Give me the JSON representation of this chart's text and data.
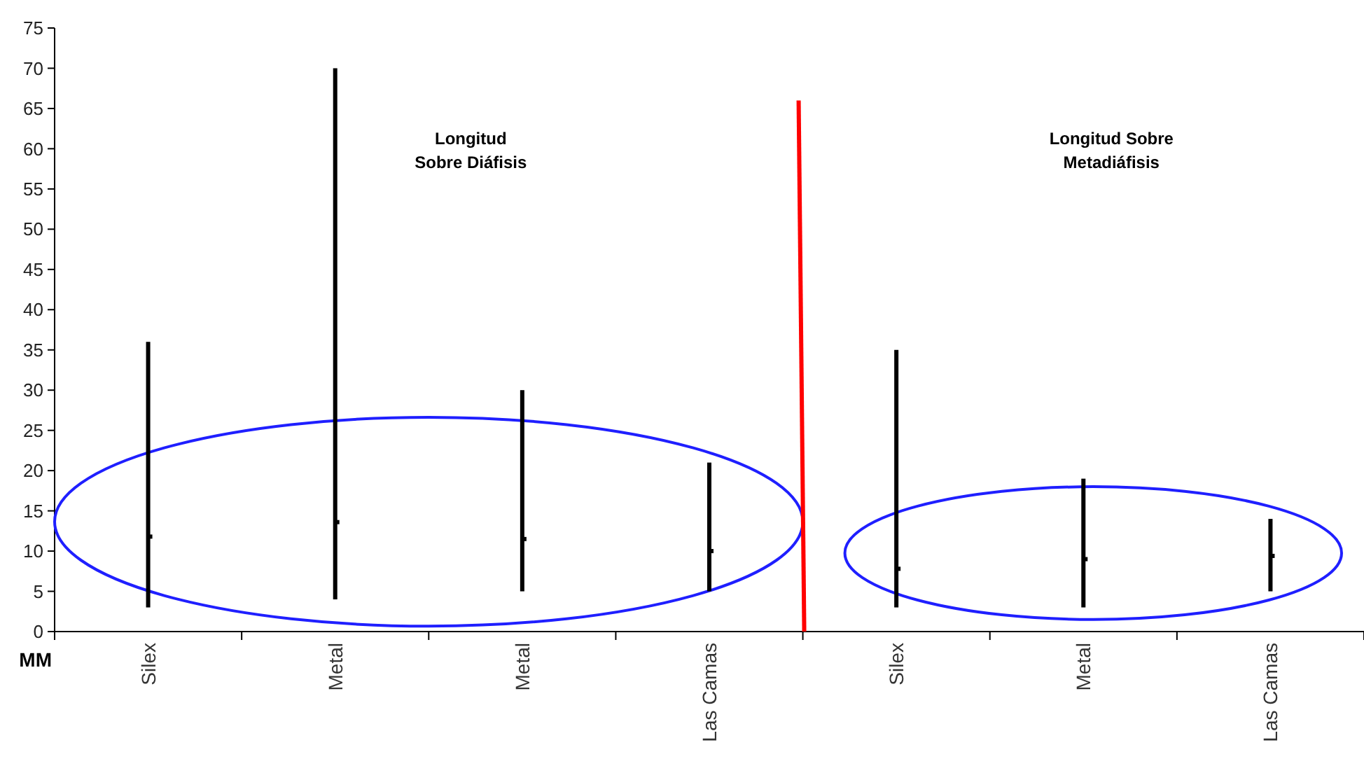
{
  "chart_data": {
    "type": "bar",
    "ylabel": "MM",
    "categories": [
      "Silex",
      "Metal",
      "Metal",
      "Las Camas",
      "Silex",
      "Metal",
      "Las Camas"
    ],
    "ylim": [
      0,
      75
    ],
    "yticks": [
      0,
      5,
      10,
      15,
      20,
      25,
      30,
      35,
      40,
      45,
      50,
      55,
      60,
      65,
      70,
      75
    ],
    "grid": false,
    "series": [
      {
        "color": "#000000",
        "base": [
          3,
          4,
          5,
          5,
          3,
          3,
          5
        ],
        "values": [
          33,
          66,
          25,
          16,
          32,
          16,
          9
        ]
      },
      {
        "type": "scatter",
        "color": "#000000",
        "marker": "square",
        "values": [
          11.8,
          13.6,
          11.5,
          10,
          7.8,
          9,
          9.4
        ]
      }
    ],
    "annotations": [
      "Longitud\nSobre Diáfisis",
      "Longitud Sobre\nMetadiáfisis"
    ]
  }
}
